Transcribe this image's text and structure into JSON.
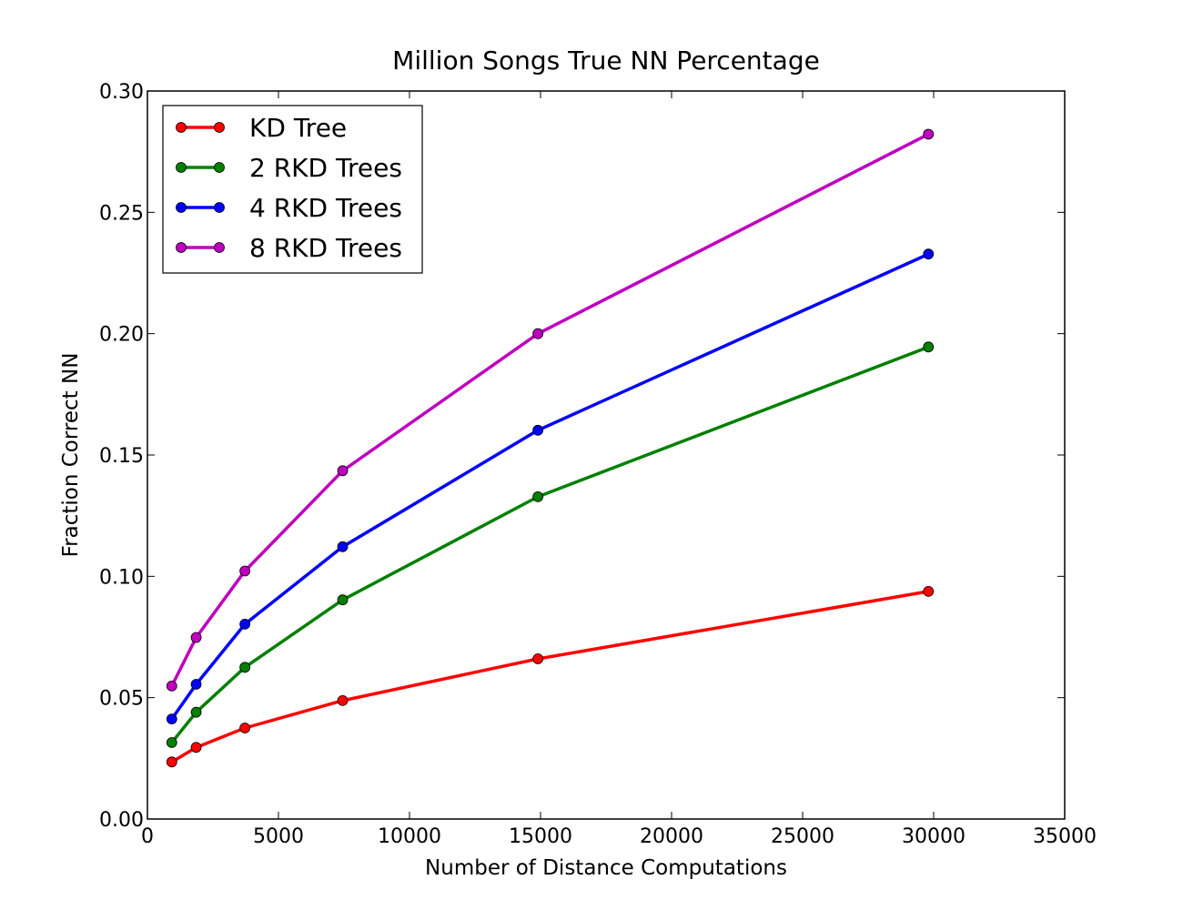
{
  "chart_data": {
    "type": "line",
    "title": "Million Songs True NN Percentage",
    "xlabel": "Number of Distance Computations",
    "ylabel": "Fraction Correct NN",
    "xlim": [
      0,
      35000
    ],
    "ylim": [
      0.0,
      0.3
    ],
    "xticks": [
      0,
      5000,
      10000,
      15000,
      20000,
      25000,
      30000,
      35000
    ],
    "xtick_labels": [
      "0",
      "5000",
      "10000",
      "15000",
      "20000",
      "25000",
      "30000",
      "35000"
    ],
    "yticks": [
      0.0,
      0.05,
      0.1,
      0.15,
      0.2,
      0.25,
      0.3
    ],
    "ytick_labels": [
      "0.00",
      "0.05",
      "0.10",
      "0.15",
      "0.20",
      "0.25",
      "0.30"
    ],
    "grid": false,
    "legend_position": "top-left",
    "x": [
      930,
      1860,
      3720,
      7450,
      14900,
      29800
    ],
    "series": [
      {
        "name": "KD Tree",
        "color": "#ff0000",
        "values": [
          0.0235,
          0.0295,
          0.0375,
          0.0488,
          0.066,
          0.0938
        ]
      },
      {
        "name": "2 RKD Trees",
        "color": "#008000",
        "values": [
          0.0315,
          0.044,
          0.0625,
          0.0903,
          0.1328,
          0.1945
        ]
      },
      {
        "name": "4 RKD Trees",
        "color": "#0000ff",
        "values": [
          0.0412,
          0.0555,
          0.0803,
          0.1122,
          0.1602,
          0.2328
        ]
      },
      {
        "name": "8 RKD Trees",
        "color": "#bf00bf",
        "values": [
          0.0548,
          0.0748,
          0.1022,
          0.1435,
          0.2,
          0.2822
        ]
      }
    ]
  }
}
